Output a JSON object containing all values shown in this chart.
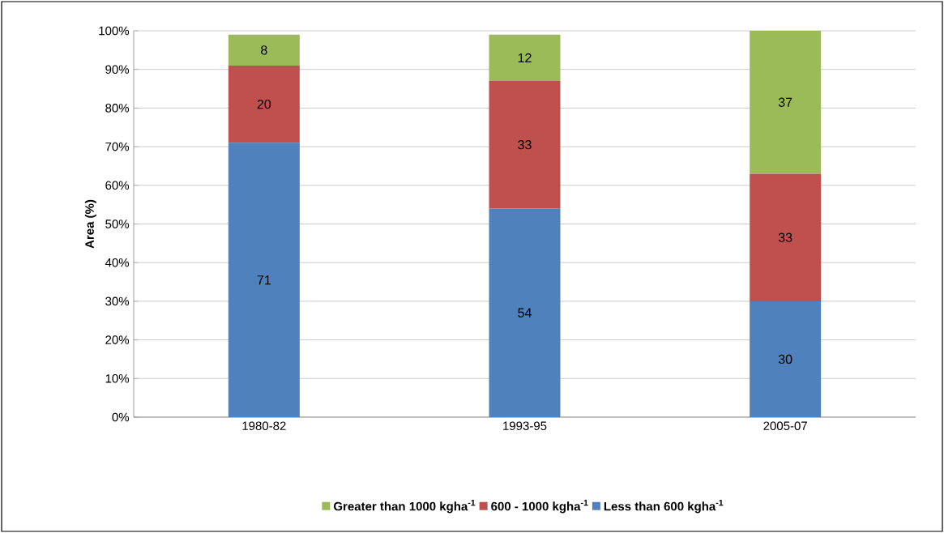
{
  "chart_data": {
    "type": "bar",
    "stacked": true,
    "ylabel": "Area (%)",
    "categories": [
      "1980-82",
      "1993-95",
      "2005-07"
    ],
    "series": [
      {
        "name": "Less than 600 kgha$^{-1}$",
        "color": "#4f81bd",
        "values": [
          71,
          54,
          30
        ]
      },
      {
        "name": "600 - 1000 kgha$^{-1}$",
        "color": "#c0504d",
        "values": [
          20,
          33,
          33
        ]
      },
      {
        "name": "Greater than 1000 kgha$^{-1}$",
        "color": "#9bbb59",
        "values": [
          8,
          12,
          37
        ]
      }
    ],
    "ylim": [
      0,
      100
    ],
    "yticks": [
      {
        "value": 0,
        "label": "0%"
      },
      {
        "value": 10,
        "label": "10%"
      },
      {
        "value": 20,
        "label": "20%"
      },
      {
        "value": 30,
        "label": "30%"
      },
      {
        "value": 40,
        "label": "40%"
      },
      {
        "value": 50,
        "label": "50%"
      },
      {
        "value": 60,
        "label": "60%"
      },
      {
        "value": 70,
        "label": "70%"
      },
      {
        "value": 80,
        "label": "80%"
      },
      {
        "value": 90,
        "label": "90%"
      },
      {
        "value": 100,
        "label": "100%"
      }
    ],
    "grid": "y",
    "legend": "bottom",
    "data_labels": true
  }
}
